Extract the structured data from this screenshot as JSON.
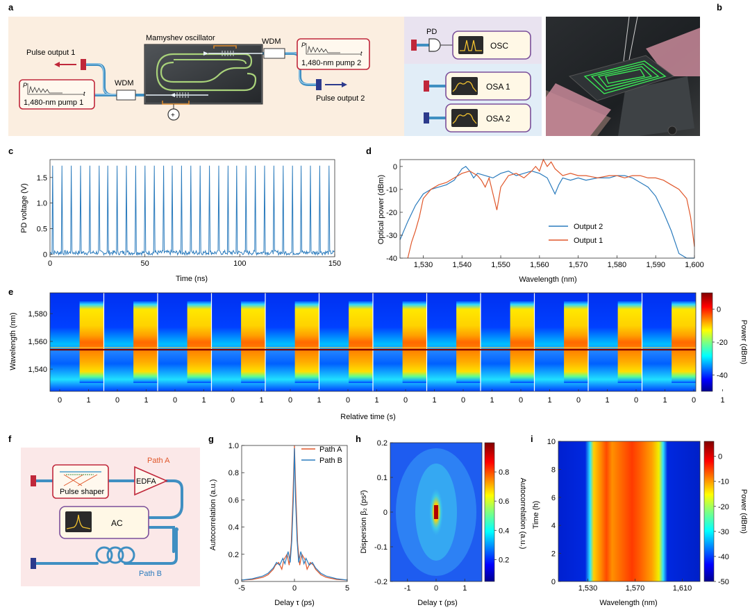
{
  "panel_labels": {
    "a": "a",
    "b": "b",
    "c": "c",
    "d": "d",
    "e": "e",
    "f": "f",
    "g": "g",
    "h": "h",
    "i": "i"
  },
  "panel_a": {
    "oscillator": "Mamyshev oscillator",
    "wdm": "WDM",
    "pulse_output_1": "Pulse output 1",
    "pulse_output_2": "Pulse output 2",
    "pump_1": "1,480-nm pump 1",
    "pump_2": "1,480-nm pump 2",
    "axis_p": "P",
    "axis_t": "t",
    "pd": "PD",
    "osc": "OSC",
    "osa1": "OSA 1",
    "osa2": "OSA 2"
  },
  "panel_f": {
    "path_a": "Path A",
    "path_b": "Path B",
    "pulse_shaper": "Pulse shaper",
    "edfa": "EDFA",
    "ac": "AC"
  },
  "colors": {
    "accent_orange": "#e0572a",
    "accent_blue": "#2a7bbd",
    "fiber": "#4a9ccc",
    "connector_red": "#c0273a",
    "connector_blue": "#2c3a8c"
  },
  "chart_data": [
    {
      "id": "c",
      "type": "line",
      "xlabel": "Time (ns)",
      "ylabel": "PD voltage (V)",
      "xlim": [
        0,
        150
      ],
      "ylim": [
        -0.05,
        1.85
      ],
      "xticks": [
        0,
        50,
        100,
        150
      ],
      "yticks": [
        0,
        0.5,
        1.0,
        1.5
      ],
      "ytick_labels": [
        "0",
        "0.5",
        "1.0",
        "1.5"
      ],
      "pulse_period_ns": 4.85,
      "first_pulse_ns": 1.5,
      "pulse_peak_v": 1.73,
      "baseline_v": 0.03
    },
    {
      "id": "d",
      "type": "line",
      "xlabel": "Wavelength (nm)",
      "ylabel": "Optical power (dBm)",
      "xlim": [
        1524,
        1600
      ],
      "ylim": [
        -40,
        3
      ],
      "xticks": [
        1530,
        1540,
        1550,
        1560,
        1570,
        1580,
        1590,
        1600
      ],
      "xtick_labels": [
        "1,530",
        "1,540",
        "1,550",
        "1,560",
        "1,570",
        "1,580",
        "1,590",
        "1,600"
      ],
      "yticks": [
        -40,
        -30,
        -20,
        -10,
        0
      ],
      "legend": [
        "Output 2",
        "Output 1"
      ],
      "series": [
        {
          "name": "Output 2",
          "color": "#2a7bbd",
          "x": [
            1524,
            1526,
            1528,
            1530,
            1532,
            1534,
            1536,
            1538,
            1540,
            1541,
            1542,
            1543,
            1544,
            1546,
            1548,
            1550,
            1552,
            1554,
            1556,
            1558,
            1560,
            1562,
            1564,
            1565,
            1566,
            1568,
            1570,
            1572,
            1575,
            1578,
            1580,
            1582,
            1584,
            1586,
            1588,
            1590,
            1592,
            1594,
            1596,
            1598,
            1600
          ],
          "y": [
            -32,
            -24,
            -17,
            -12,
            -10,
            -9,
            -8,
            -6,
            -1,
            0,
            -2,
            -5,
            -3,
            -4,
            -5,
            -3,
            -2,
            -4,
            -3,
            -2,
            -3,
            -5,
            -12,
            -8,
            -5,
            -6,
            -5,
            -6,
            -5,
            -5,
            -4,
            -4,
            -5,
            -7,
            -9,
            -13,
            -20,
            -28,
            -38,
            -42,
            -42
          ]
        },
        {
          "name": "Output 1",
          "color": "#e0572a",
          "x": [
            1526,
            1527,
            1528,
            1529,
            1530,
            1532,
            1534,
            1536,
            1538,
            1540,
            1542,
            1544,
            1545,
            1546,
            1547,
            1548,
            1549,
            1550,
            1552,
            1554,
            1556,
            1558,
            1559,
            1560,
            1561,
            1562,
            1563,
            1564,
            1566,
            1568,
            1570,
            1572,
            1575,
            1578,
            1580,
            1582,
            1584,
            1586,
            1588,
            1590,
            1592,
            1594,
            1596,
            1598,
            1599,
            1600
          ],
          "y": [
            -40,
            -33,
            -28,
            -22,
            -14,
            -10,
            -8,
            -7,
            -5,
            -3,
            -2,
            -4,
            -6,
            -9,
            -5,
            -12,
            -19,
            -9,
            -4,
            -3,
            -5,
            -2,
            0,
            -2,
            3,
            0,
            2,
            -1,
            -4,
            -3,
            -4,
            -4,
            -5,
            -4,
            -4,
            -5,
            -4,
            -4,
            -5,
            -5,
            -6,
            -8,
            -10,
            -14,
            -22,
            -35
          ]
        }
      ]
    },
    {
      "id": "e",
      "type": "heatmap",
      "xlabel": "Relative time (s)",
      "ylabel": "Wavelength (nm)",
      "yticks": [
        1540,
        1560,
        1580
      ],
      "ytick_labels": [
        "1,540",
        "1,560",
        "1,580"
      ],
      "ylim": [
        1524,
        1595
      ],
      "xtick_labels": [
        "0",
        "1",
        "0",
        "1",
        "0",
        "1",
        "0",
        "1",
        "0",
        "1",
        "0",
        "1",
        "0",
        "1",
        "0",
        "1",
        "0",
        "1",
        "0",
        "1",
        "0",
        "1",
        "0",
        "1"
      ],
      "segments": 12,
      "colorbar_label": "Power (dBm)",
      "colorbar_ticks": [
        0,
        -20,
        -40
      ],
      "colorbar_range": [
        -50,
        10
      ]
    },
    {
      "id": "g",
      "type": "line",
      "xlabel": "Delay τ (ps)",
      "ylabel": "Autocorrelation (a.u.)",
      "xlim": [
        -5,
        5
      ],
      "ylim": [
        0,
        1.0
      ],
      "xticks": [
        -5,
        0,
        5
      ],
      "yticks": [
        0,
        0.2,
        0.4,
        0.6,
        0.8,
        1.0
      ],
      "ytick_labels": [
        "0",
        "0.2",
        "0.4",
        "0.6",
        "0.8",
        "1.0"
      ],
      "legend": [
        "Path A",
        "Path B"
      ],
      "series": [
        {
          "name": "Path A",
          "color": "#e0572a",
          "x": [
            -5,
            -4,
            -3,
            -2.5,
            -2,
            -1.8,
            -1.5,
            -1.2,
            -1,
            -0.7,
            -0.5,
            -0.3,
            -0.15,
            0,
            0.15,
            0.3,
            0.5,
            0.7,
            1,
            1.2,
            1.5,
            1.8,
            2,
            2.5,
            3,
            4,
            5
          ],
          "y": [
            0.01,
            0.015,
            0.03,
            0.05,
            0.09,
            0.12,
            0.14,
            0.09,
            0.16,
            0.2,
            0.12,
            0.28,
            0.6,
            1.0,
            0.6,
            0.28,
            0.12,
            0.2,
            0.16,
            0.09,
            0.14,
            0.12,
            0.09,
            0.05,
            0.03,
            0.015,
            0.01
          ]
        },
        {
          "name": "Path B",
          "color": "#2a7bbd",
          "x": [
            -5,
            -4,
            -3,
            -2.5,
            -2,
            -1.7,
            -1.4,
            -1.1,
            -0.9,
            -0.6,
            -0.4,
            -0.25,
            -0.1,
            0,
            0.1,
            0.25,
            0.4,
            0.6,
            0.9,
            1.1,
            1.4,
            1.7,
            2,
            2.5,
            3,
            4,
            5
          ],
          "y": [
            0.01,
            0.02,
            0.04,
            0.06,
            0.1,
            0.14,
            0.12,
            0.17,
            0.13,
            0.22,
            0.14,
            0.3,
            0.62,
            0.98,
            0.62,
            0.3,
            0.14,
            0.22,
            0.13,
            0.17,
            0.12,
            0.14,
            0.1,
            0.06,
            0.04,
            0.02,
            0.01
          ]
        }
      ]
    },
    {
      "id": "h",
      "type": "heatmap",
      "xlabel": "Delay τ (ps)",
      "ylabel": "Dispersion β₂ (ps²)",
      "xlim": [
        -1.6,
        1.6
      ],
      "ylim": [
        -0.2,
        0.2
      ],
      "xticks": [
        -1,
        0,
        1
      ],
      "yticks": [
        -0.2,
        -0.1,
        0,
        0.1,
        0.2
      ],
      "ytick_labels": [
        "-0.2",
        "-0.1",
        "0",
        "0.1",
        "0.2"
      ],
      "colorbar_label": "Autocorrelation (a.u.)",
      "colorbar_ticks": [
        0.2,
        0.4,
        0.6,
        0.8
      ],
      "colorbar_range": [
        0.05,
        1.0
      ]
    },
    {
      "id": "i",
      "type": "heatmap",
      "xlabel": "Wavelength (nm)",
      "ylabel": "Time (h)",
      "xlim": [
        1505,
        1625
      ],
      "ylim": [
        0,
        10
      ],
      "xticks": [
        1530,
        1570,
        1610
      ],
      "xtick_labels": [
        "1,530",
        "1,570",
        "1,610"
      ],
      "yticks": [
        0,
        2,
        4,
        6,
        8,
        10
      ],
      "colorbar_label": "Power (dBm)",
      "colorbar_ticks": [
        0,
        -10,
        -20,
        -30,
        -40,
        -50
      ],
      "colorbar_range": [
        -50,
        6
      ]
    }
  ]
}
